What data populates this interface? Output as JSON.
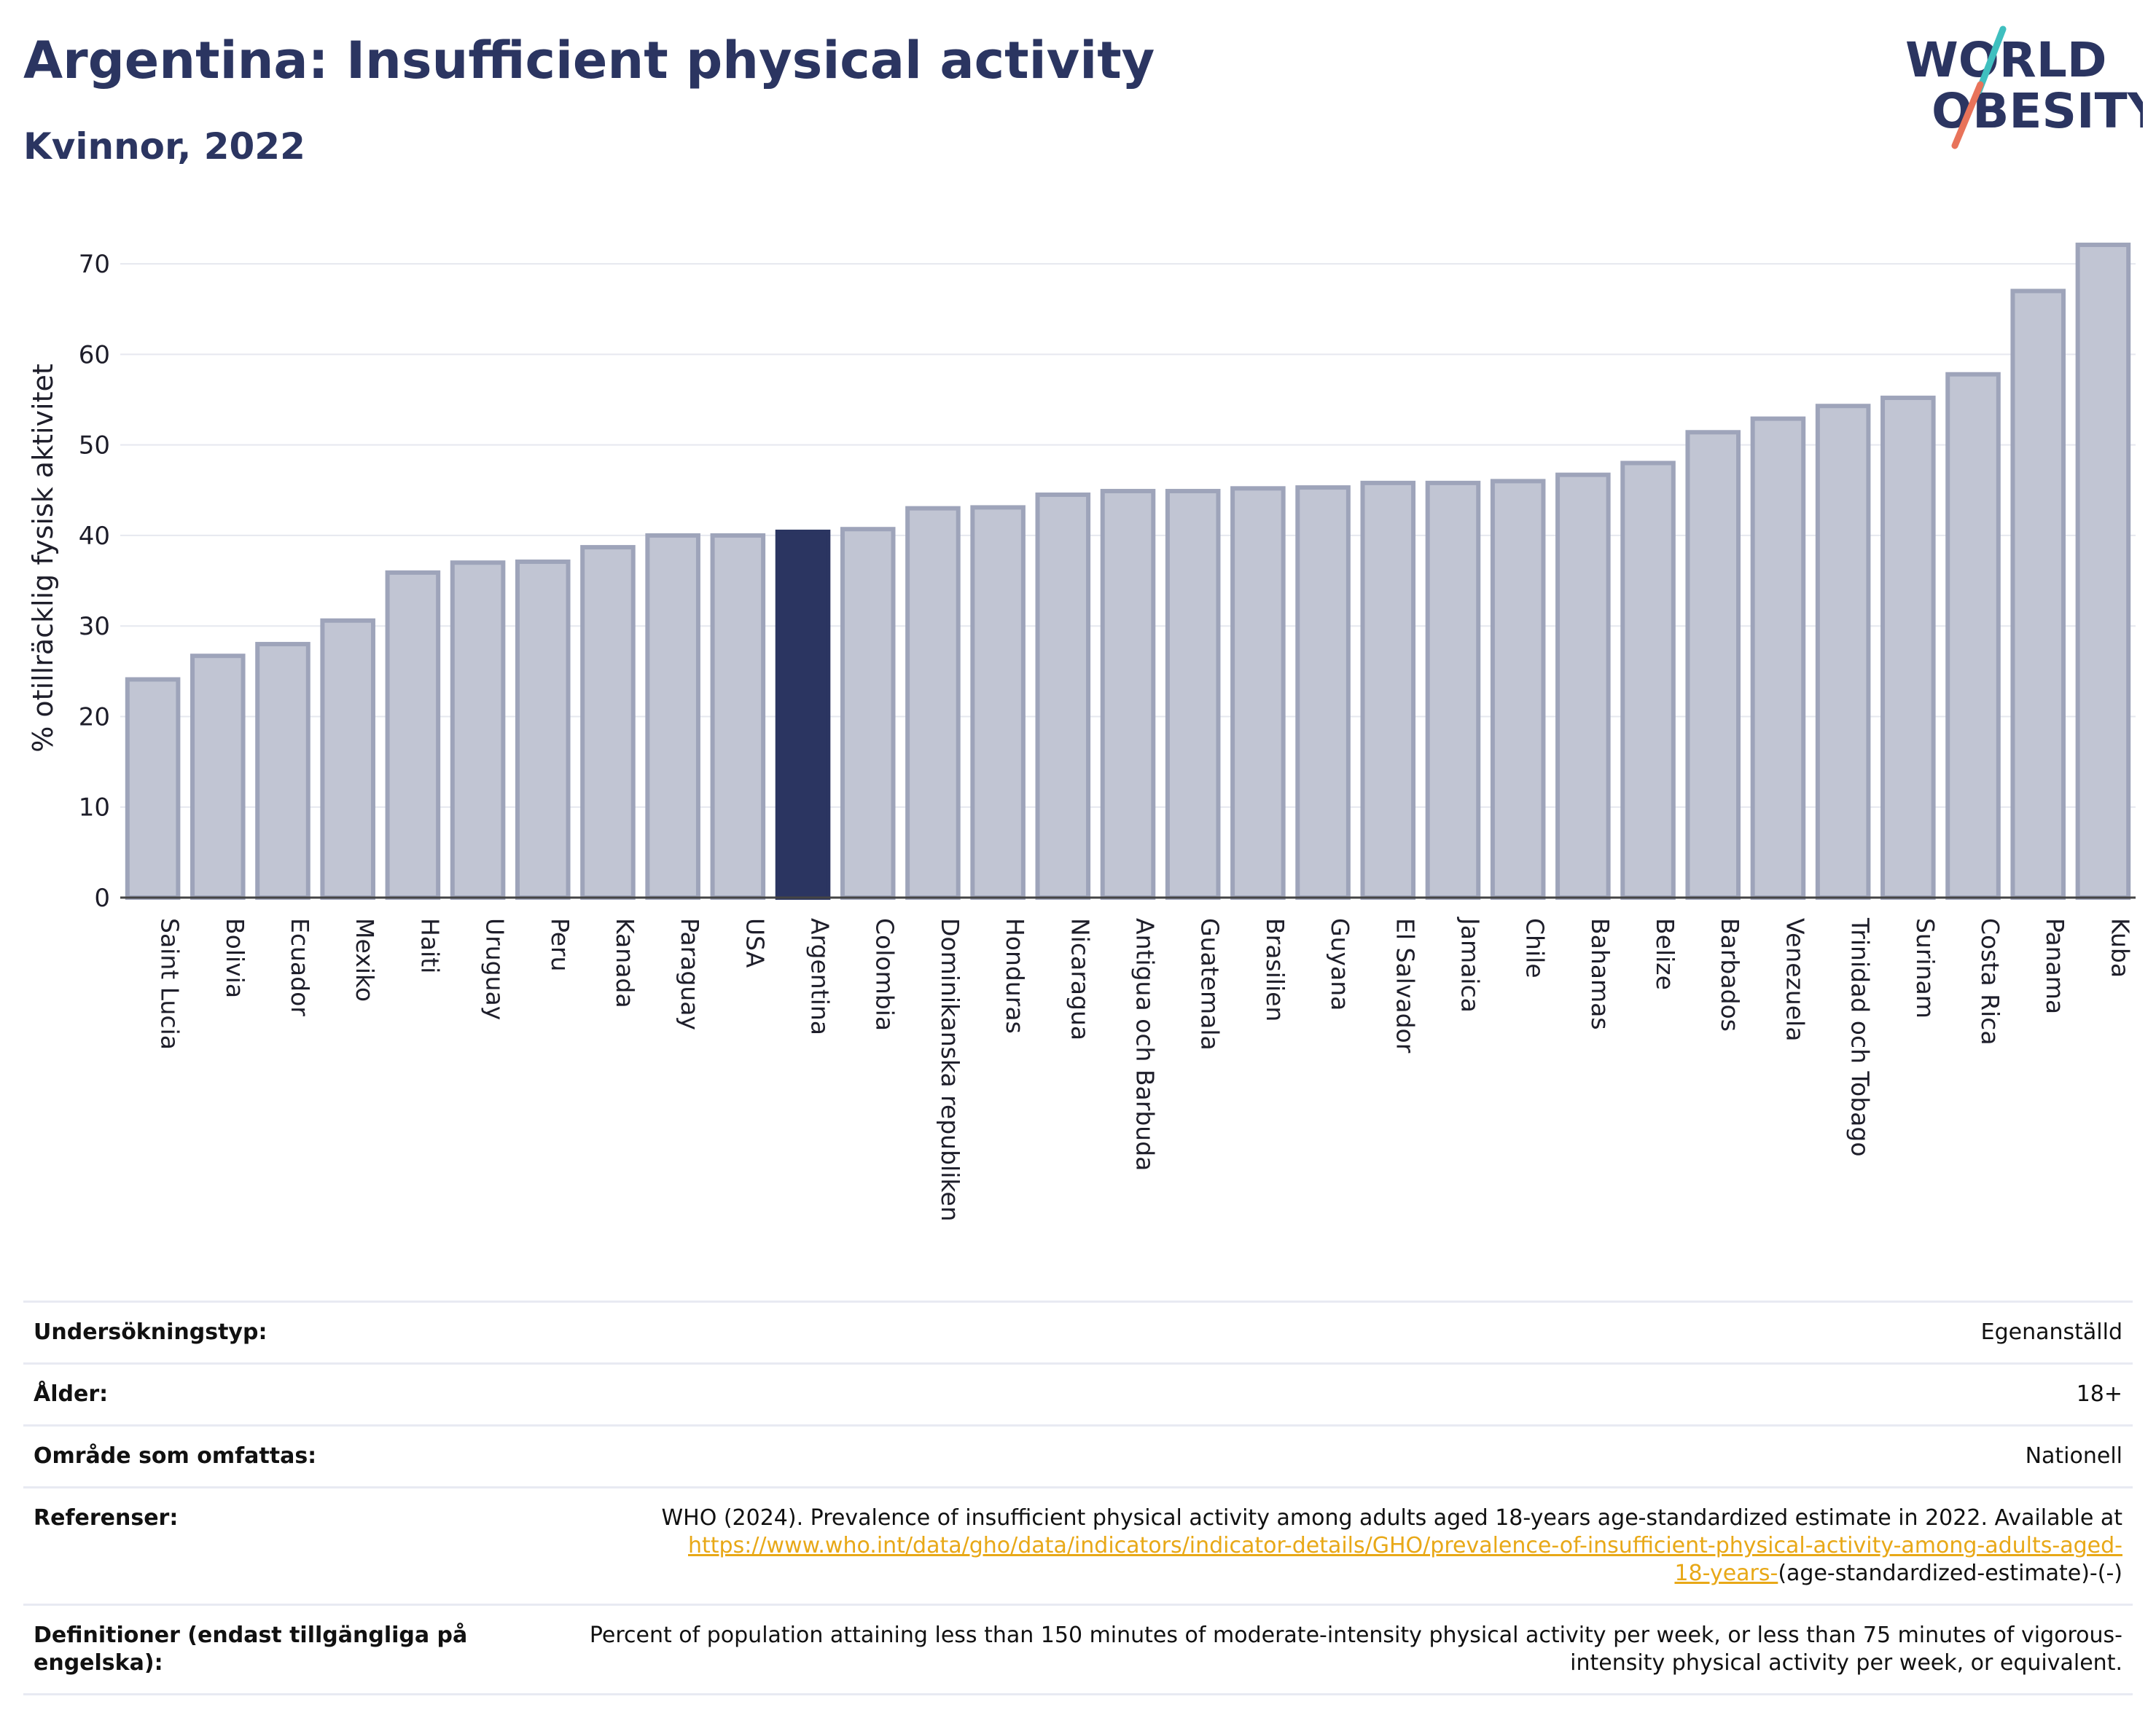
{
  "header": {
    "title": "Argentina: Insufficient physical activity",
    "subtitle": "Kvinnor, 2022",
    "logo_line1": "WORLD",
    "logo_line2": "OBESITY"
  },
  "colors": {
    "bar": "#c1c5d3",
    "bar_border": "#9ea4ba",
    "highlight": "#2b3561",
    "title": "#2b3561",
    "link": "#e8a817",
    "logo_teal": "#3fbfbf",
    "logo_coral": "#e8735a"
  },
  "chart_data": {
    "type": "bar",
    "title": "",
    "xlabel": "",
    "ylabel": "% otillräcklig fysisk aktivitet",
    "ylim": [
      0,
      75
    ],
    "yticks": [
      0,
      10,
      20,
      30,
      40,
      50,
      60,
      70
    ],
    "grid": true,
    "highlight": "Argentina",
    "categories": [
      "Saint Lucia",
      "Bolivia",
      "Ecuador",
      "Mexiko",
      "Haiti",
      "Uruguay",
      "Peru",
      "Kanada",
      "Paraguay",
      "USA",
      "Argentina",
      "Colombia",
      "Dominikanska republiken",
      "Honduras",
      "Nicaragua",
      "Antigua och Barbuda",
      "Guatemala",
      "Brasilien",
      "Guyana",
      "El Salvador",
      "Jamaica",
      "Chile",
      "Bahamas",
      "Belize",
      "Barbados",
      "Venezuela",
      "Trinidad och Tobago",
      "Surinam",
      "Costa Rica",
      "Panama",
      "Kuba"
    ],
    "values": [
      24.1,
      26.7,
      28.0,
      30.6,
      35.9,
      37.0,
      37.1,
      38.7,
      40.0,
      40.0,
      40.4,
      40.7,
      43.0,
      43.1,
      44.5,
      44.9,
      44.9,
      45.2,
      45.3,
      45.8,
      45.8,
      46.0,
      46.7,
      48.0,
      51.4,
      52.9,
      54.3,
      55.2,
      57.8,
      67.0,
      72.1
    ]
  },
  "info": {
    "rows": [
      {
        "key": "Undersökningstyp:",
        "value": "Egenanställd"
      },
      {
        "key": "Ålder:",
        "value": "18+"
      },
      {
        "key": "Område som omfattas:",
        "value": "Nationell"
      }
    ],
    "references": {
      "key": "Referenser:",
      "text_before": "WHO (2024). Prevalence of insufficient physical activity among adults aged 18-years age-standardized estimate in 2022. Available at ",
      "link_line1": "https://www.who.int/data/gho/data/indicators/indicator-details/GHO/prevalence-of-insufficient-physical-activity-among-adults-aged-",
      "link_line2": "18-years-",
      "text_after": "(age-standardized-estimate)-(-)"
    },
    "definitions": {
      "key": "Definitioner (endast tillgängliga på engelska):",
      "value": "Percent of population attaining less than 150 minutes of moderate-intensity physical activity per week, or less than 75 minutes of vigorous-intensity physical activity per week, or equivalent."
    }
  }
}
